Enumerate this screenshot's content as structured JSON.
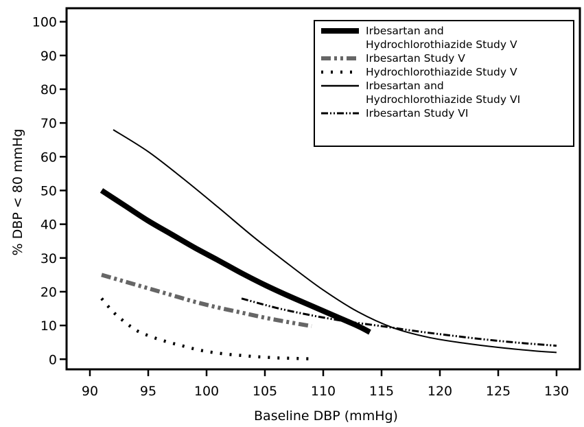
{
  "chart_data": {
    "type": "line",
    "title": "",
    "xlabel": "Baseline DBP (mmHg)",
    "ylabel": "% DBP < 80 mmHg",
    "xlim": [
      88,
      132
    ],
    "ylim": [
      -3,
      104
    ],
    "xticks": [
      90,
      95,
      100,
      105,
      110,
      115,
      120,
      125,
      130
    ],
    "yticks": [
      0,
      10,
      20,
      30,
      40,
      50,
      60,
      70,
      80,
      90,
      100
    ],
    "grid": false,
    "legend_position": "top-right",
    "series": [
      {
        "name_lines": [
          "Irbesartan and",
          "Hydrochlorothiazide Study V"
        ],
        "style": "thick-solid",
        "color": "#000000",
        "x": [
          91,
          93,
          95,
          97,
          99,
          101,
          103,
          105,
          107,
          109,
          111,
          113,
          114
        ],
        "y": [
          50,
          45.5,
          41,
          37,
          33,
          29.3,
          25.5,
          22,
          18.8,
          15.8,
          12.8,
          9.8,
          8
        ]
      },
      {
        "name_lines": [
          "Irbesartan Study V"
        ],
        "style": "thick-dash-dot",
        "color": "#666666",
        "x": [
          91,
          93,
          95,
          97,
          99,
          101,
          103,
          105,
          107,
          109
        ],
        "y": [
          25,
          23,
          21,
          19,
          17,
          15.3,
          13.8,
          12.3,
          11,
          9.8
        ]
      },
      {
        "name_lines": [
          "Hydrochlorothiazide Study V"
        ],
        "style": "dotted",
        "color": "#000000",
        "x": [
          91,
          92,
          93,
          94,
          95,
          96,
          97,
          98,
          99,
          100,
          101,
          102,
          103,
          104,
          105,
          106,
          107,
          108,
          109
        ],
        "y": [
          18,
          14,
          11,
          8.5,
          7,
          5.8,
          4.8,
          3.9,
          3,
          2.3,
          1.8,
          1.4,
          1.1,
          0.8,
          0.6,
          0.4,
          0.3,
          0.2,
          0.1
        ]
      },
      {
        "name_lines": [
          "Irbesartan and",
          "Hydrochlorothiazide Study VI"
        ],
        "style": "thin-solid",
        "color": "#000000",
        "x": [
          92,
          95,
          98,
          101,
          104,
          107,
          110,
          113,
          116,
          119,
          122,
          125,
          128,
          130
        ],
        "y": [
          68,
          61.5,
          53.5,
          45,
          36.3,
          28.2,
          20.5,
          14,
          9.3,
          6.5,
          4.8,
          3.5,
          2.5,
          2
        ]
      },
      {
        "name_lines": [
          "Irbesartan Study VI"
        ],
        "style": "dash-dot-dot",
        "color": "#000000",
        "x": [
          103,
          106,
          109,
          112,
          115,
          118,
          121,
          124,
          127,
          130
        ],
        "y": [
          18,
          15.2,
          13,
          11.2,
          9.8,
          8.3,
          7,
          5.8,
          4.8,
          4
        ]
      }
    ]
  }
}
